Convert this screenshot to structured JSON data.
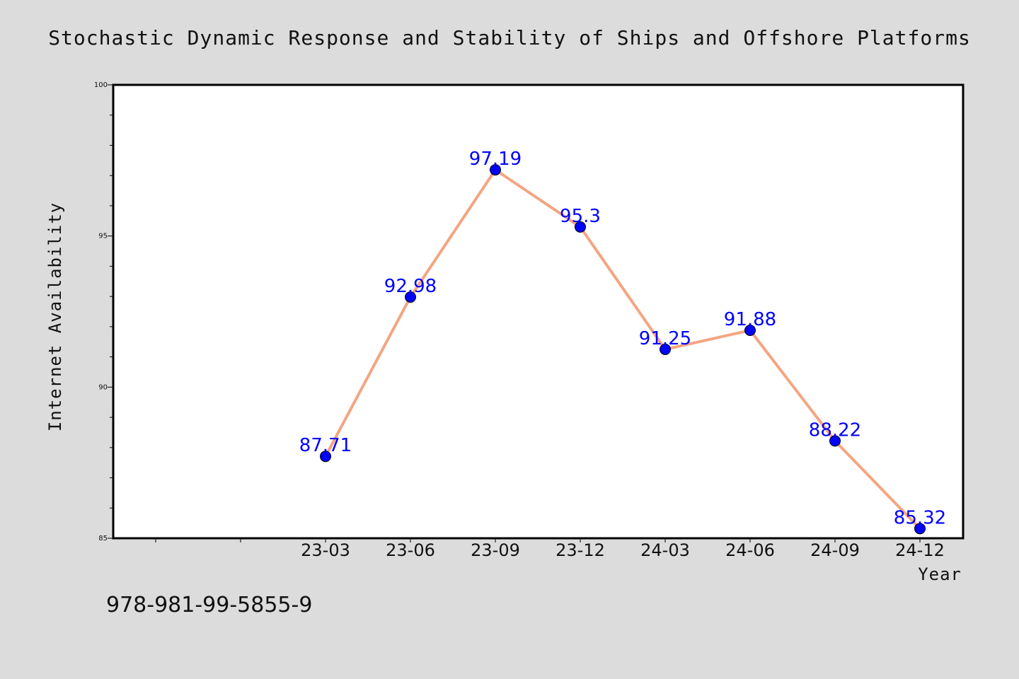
{
  "chart_data": {
    "type": "line",
    "title": "Stochastic Dynamic Response and Stability of Ships and Offshore Platforms",
    "xlabel": "Year",
    "ylabel": "Internet Availability",
    "categories": [
      "23-03",
      "23-06",
      "23-09",
      "23-12",
      "24-03",
      "24-06",
      "24-09",
      "24-12"
    ],
    "series": [
      {
        "values": [
          87.71,
          92.98,
          97.19,
          95.3,
          91.25,
          91.88,
          88.22,
          85.32
        ],
        "labels": [
          "87.71",
          "92.98",
          "97.19",
          "95.3",
          "91.25",
          "91.88",
          "88.22",
          "85.32"
        ]
      }
    ],
    "ylim": [
      85,
      100
    ],
    "yticks": [
      "85",
      "90",
      "95",
      "100"
    ],
    "grid": false,
    "legend": "none",
    "line_color": "#f4a582",
    "marker_color": "#0000ff",
    "label_color": "#0000ff"
  },
  "footer": {
    "isbn": "978-981-99-5855-9"
  }
}
